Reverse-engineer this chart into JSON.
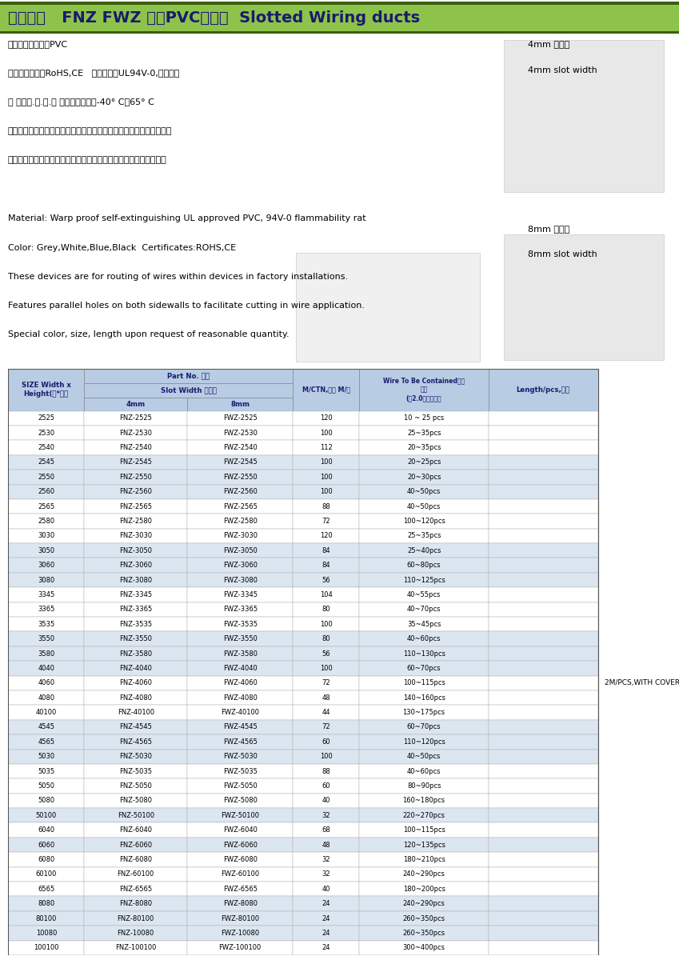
{
  "title": "上海发控   FNZ FWZ 系列PVC配线槽  Slotted Wiring ducts",
  "title_bg": "#8dc34a",
  "title_border_dark": "#4a7c1f",
  "title_border_top": "#5a9a2a",
  "title_fg": "#1a1a6e",
  "header_bg": "#b8cce4",
  "row_alt_bg": "#dce6f1",
  "row_normal_bg": "#ffffff",
  "border_color": "#aaaaaa",
  "chinese_lines": [
    "材质：低卤素硬质PVC",
    "认证：欧洲环保RoHS,CE   防火等级：UL94V-0,低烟微卤",
    "颜 色：灰.白.蓝.黑 工作温度：静态-40° C至65° C",
    "产品优势：盖子与底槽扣住后不易滑动，表面光滑，美观不伤手和电线",
    "线槽底部折断线设计，需要增大出线孔处，易于折断，提高布线效率"
  ],
  "right_label_4mm_1": "4mm 出线孔",
  "right_label_4mm_2": "4mm slot width",
  "right_label_8mm_1": "8mm 出线孔",
  "right_label_8mm_2": "8mm slot width",
  "english_lines": [
    "Material: Warp proof self-extinguishing UL approved PVC, 94V-0 flammability rat",
    "Color: Grey,White,Blue,Black  Certificates:ROHS,CE",
    "These devices are for routing of wires within devices in factory installations.",
    "Features parallel holes on both sidewalls to facilitate cutting in wire application.",
    "Special color, size, length upon request of reasonable quantity."
  ],
  "note": "2M/PCS,WITH COVER",
  "part_no_header": "Part No. 型号",
  "slot_width_header": "Slot Width 出线孔",
  "col0_header": "SIZE Width x\nHeight(宽*高）",
  "col3_header": "M/CTN,包装 M/筱",
  "col4_header": "Wire To Be Contained电线\n容量\n(以2.0平方计算）",
  "col5_header": "Length/pcs,长度",
  "rows": [
    [
      "2525",
      "FNZ-2525",
      "FWZ-2525",
      "120",
      "10 ~ 25 pcs",
      false
    ],
    [
      "2530",
      "FNZ-2530",
      "FWZ-2530",
      "100",
      "25~35pcs",
      false
    ],
    [
      "2540",
      "FNZ-2540",
      "FWZ-2540",
      "112",
      "20~35pcs",
      false
    ],
    [
      "2545",
      "FNZ-2545",
      "FWZ-2545",
      "100",
      "20~25pcs",
      true
    ],
    [
      "2550",
      "FNZ-2550",
      "FWZ-2550",
      "100",
      "20~30pcs",
      true
    ],
    [
      "2560",
      "FNZ-2560",
      "FWZ-2560",
      "100",
      "40~50pcs",
      true
    ],
    [
      "2565",
      "FNZ-2565",
      "FWZ-2565",
      "88",
      "40~50pcs",
      false
    ],
    [
      "2580",
      "FNZ-2580",
      "FWZ-2580",
      "72",
      "100~120pcs",
      false
    ],
    [
      "3030",
      "FNZ-3030",
      "FWZ-3030",
      "120",
      "25~35pcs",
      false
    ],
    [
      "3050",
      "FNZ-3050",
      "FWZ-3050",
      "84",
      "25~40pcs",
      true
    ],
    [
      "3060",
      "FNZ-3060",
      "FWZ-3060",
      "84",
      "60~80pcs",
      true
    ],
    [
      "3080",
      "FNZ-3080",
      "FWZ-3080",
      "56",
      "110~125pcs",
      true
    ],
    [
      "3345",
      "FNZ-3345",
      "FWZ-3345",
      "104",
      "40~55pcs",
      false
    ],
    [
      "3365",
      "FNZ-3365",
      "FWZ-3365",
      "80",
      "40~70pcs",
      false
    ],
    [
      "3535",
      "FNZ-3535",
      "FWZ-3535",
      "100",
      "35~45pcs",
      false
    ],
    [
      "3550",
      "FNZ-3550",
      "FWZ-3550",
      "80",
      "40~60pcs",
      true
    ],
    [
      "3580",
      "FNZ-3580",
      "FWZ-3580",
      "56",
      "110~130pcs",
      true
    ],
    [
      "4040",
      "FNZ-4040",
      "FWZ-4040",
      "100",
      "60~70pcs",
      true
    ],
    [
      "4060",
      "FNZ-4060",
      "FWZ-4060",
      "72",
      "100~115pcs",
      false
    ],
    [
      "4080",
      "FNZ-4080",
      "FWZ-4080",
      "48",
      "140~160pcs",
      false
    ],
    [
      "40100",
      "FNZ-40100",
      "FWZ-40100",
      "44",
      "130~175pcs",
      false
    ],
    [
      "4545",
      "FNZ-4545",
      "FWZ-4545",
      "72",
      "60~70pcs",
      true
    ],
    [
      "4565",
      "FNZ-4565",
      "FWZ-4565",
      "60",
      "110~120pcs",
      true
    ],
    [
      "5030",
      "FNZ-5030",
      "FWZ-5030",
      "100",
      "40~50pcs",
      true
    ],
    [
      "5035",
      "FNZ-5035",
      "FWZ-5035",
      "88",
      "40~60pcs",
      false
    ],
    [
      "5050",
      "FNZ-5050",
      "FWZ-5050",
      "60",
      "80~90pcs",
      false
    ],
    [
      "5080",
      "FNZ-5080",
      "FWZ-5080",
      "40",
      "160~180pcs",
      false
    ],
    [
      "50100",
      "FNZ-50100",
      "FWZ-50100",
      "32",
      "220~270pcs",
      true
    ],
    [
      "6040",
      "FNZ-6040",
      "FWZ-6040",
      "68",
      "100~115pcs",
      false
    ],
    [
      "6060",
      "FNZ-6060",
      "FWZ-6060",
      "48",
      "120~135pcs",
      true
    ],
    [
      "6080",
      "FNZ-6080",
      "FWZ-6080",
      "32",
      "180~210pcs",
      false
    ],
    [
      "60100",
      "FNZ-60100",
      "FWZ-60100",
      "32",
      "240~290pcs",
      false
    ],
    [
      "6565",
      "FNZ-6565",
      "FWZ-6565",
      "40",
      "180~200pcs",
      false
    ],
    [
      "8080",
      "FNZ-8080",
      "FWZ-8080",
      "24",
      "240~290pcs",
      true
    ],
    [
      "80100",
      "FNZ-80100",
      "FWZ-80100",
      "24",
      "260~350pcs",
      true
    ],
    [
      "10080",
      "FNZ-10080",
      "FWZ-10080",
      "24",
      "260~350pcs",
      true
    ],
    [
      "100100",
      "FNZ-100100",
      "FWZ-100100",
      "24",
      "300~400pcs",
      false
    ]
  ]
}
